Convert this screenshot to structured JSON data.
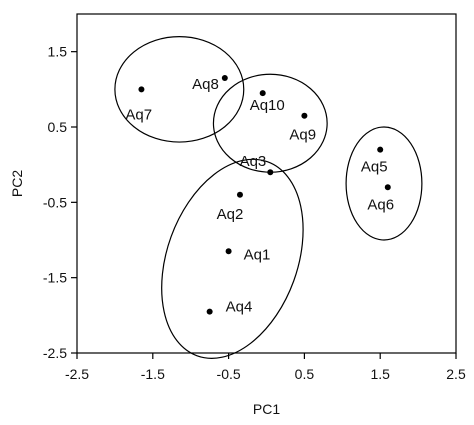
{
  "chart_data": {
    "type": "scatter",
    "title": "",
    "xlabel": "PC1",
    "ylabel": "PC2",
    "xlim": [
      -2.5,
      2.5
    ],
    "ylim": [
      -2.5,
      2.0
    ],
    "xticks": [
      -2.5,
      -1.5,
      -0.5,
      0.5,
      1.5,
      2.5
    ],
    "xtick_labels": [
      "-2.5",
      "-1.5",
      "-0.5",
      "0.5",
      "1.5",
      "2.5"
    ],
    "yticks": [
      -2.5,
      -1.5,
      -0.5,
      0.5,
      1.5
    ],
    "ytick_labels": [
      "-2.5",
      "-1.5",
      "-0.5",
      "0.5",
      "1.5"
    ],
    "grid": false,
    "points": [
      {
        "label": "Aq1",
        "x": -0.5,
        "y": -1.15
      },
      {
        "label": "Aq2",
        "x": -0.35,
        "y": -0.4
      },
      {
        "label": "Aq3",
        "x": 0.05,
        "y": -0.1
      },
      {
        "label": "Aq4",
        "x": -0.75,
        "y": -1.95
      },
      {
        "label": "Aq5",
        "x": 1.5,
        "y": 0.2
      },
      {
        "label": "Aq6",
        "x": 1.6,
        "y": -0.3
      },
      {
        "label": "Aq7",
        "x": -1.65,
        "y": 1.0
      },
      {
        "label": "Aq8",
        "x": -0.55,
        "y": 1.15
      },
      {
        "label": "Aq9",
        "x": 0.5,
        "y": 0.65
      },
      {
        "label": "Aq10",
        "x": -0.05,
        "y": 0.95
      }
    ],
    "groups": [
      {
        "members": [
          "Aq7",
          "Aq8"
        ],
        "cx": -1.15,
        "cy": 1.0,
        "rx": 0.85,
        "ry": 0.7,
        "rotation_deg": 0
      },
      {
        "members": [
          "Aq9",
          "Aq10"
        ],
        "cx": 0.05,
        "cy": 0.55,
        "rx": 0.75,
        "ry": 0.65,
        "rotation_deg": 0
      },
      {
        "members": [
          "Aq1",
          "Aq2",
          "Aq3",
          "Aq4"
        ],
        "cx": -0.45,
        "cy": -1.25,
        "rx": 0.86,
        "ry": 1.37,
        "rotation_deg": 20
      },
      {
        "members": [
          "Aq5",
          "Aq6"
        ],
        "cx": 1.55,
        "cy": -0.25,
        "rx": 0.5,
        "ry": 0.75,
        "rotation_deg": 0
      }
    ]
  }
}
